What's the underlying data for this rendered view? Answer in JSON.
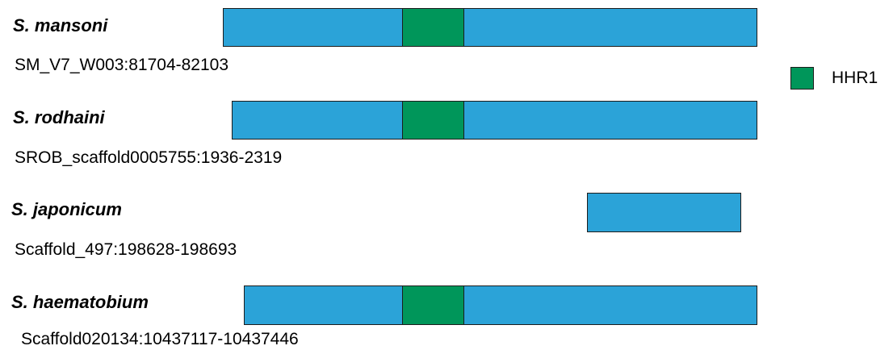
{
  "colors": {
    "sequence_bar": "#2ba3d8",
    "hhr1_domain": "#00965a",
    "outline": "#1c1c1c"
  },
  "legend": {
    "label": "HHR1"
  },
  "tracks": [
    {
      "species": "S. mansoni",
      "locus": "SM_V7_W003:81704-82103",
      "has_hhr1": true
    },
    {
      "species": "S. rodhaini",
      "locus": "SROB_scaffold0005755:1936-2319",
      "has_hhr1": true
    },
    {
      "species": "S. japonicum",
      "locus": "Scaffold_497:198628-198693",
      "has_hhr1": false
    },
    {
      "species": "S. haematobium",
      "locus": "Scaffold020134:10437117-10437446",
      "has_hhr1": true
    }
  ]
}
